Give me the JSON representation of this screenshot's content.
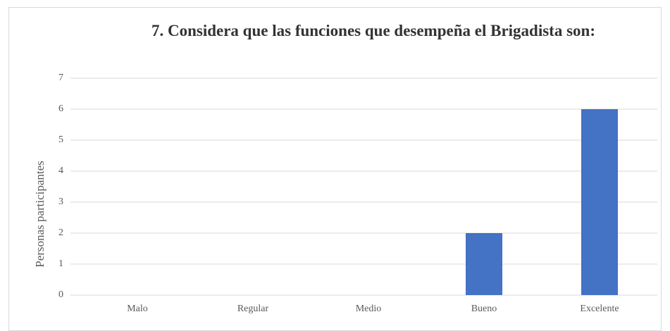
{
  "chart_data": {
    "type": "bar",
    "title": "7. Considera que las funciones que desempeña el Brigadista son:",
    "y_label": "Personas participantes",
    "categories": [
      "Malo",
      "Regular",
      "Medio",
      "Bueno",
      "Excelente"
    ],
    "values": [
      0,
      0,
      0,
      2,
      6
    ],
    "color": "#4472c4",
    "ylim": [
      0,
      7
    ],
    "yticks": [
      0,
      1,
      2,
      3,
      4,
      5,
      6,
      7
    ],
    "grid": true
  }
}
